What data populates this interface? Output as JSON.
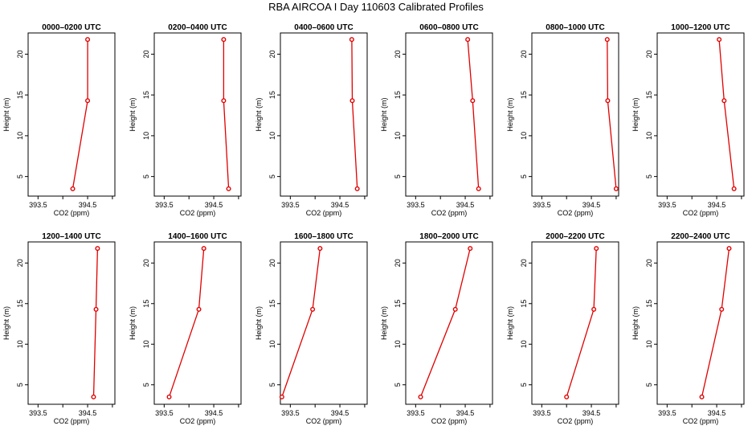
{
  "figure_title": "RBA AIRCOA I  Day 110603  Calibrated Profiles",
  "colors": {
    "series": "#e00000",
    "axis": "#000000",
    "background": "#ffffff"
  },
  "chart_data": [
    {
      "type": "line",
      "title": "0000–0200 UTC",
      "xlabel": "CO2 (ppm)",
      "ylabel": "Height (m)",
      "x": [
        394.2,
        394.5,
        394.5
      ],
      "y": [
        3.5,
        14.3,
        21.8
      ],
      "xlim": [
        393.3,
        395.05
      ],
      "ylim": [
        2.6,
        22.6
      ],
      "xticks": [
        393.5,
        394,
        394.5,
        395
      ],
      "xtick_labels": [
        "393.5",
        "",
        "394.5",
        ""
      ],
      "yticks": [
        5,
        10,
        15,
        20
      ],
      "ytick_labels": [
        "5",
        "10",
        "15",
        "20"
      ]
    },
    {
      "type": "line",
      "title": "0200–0400 UTC",
      "xlabel": "CO2 (ppm)",
      "ylabel": "Height (m)",
      "x": [
        394.8,
        394.7,
        394.7
      ],
      "y": [
        3.5,
        14.3,
        21.8
      ],
      "xlim": [
        393.3,
        395.05
      ],
      "ylim": [
        2.6,
        22.6
      ],
      "xticks": [
        393.5,
        394,
        394.5,
        395
      ],
      "xtick_labels": [
        "393.5",
        "",
        "394.5",
        ""
      ],
      "yticks": [
        5,
        10,
        15,
        20
      ],
      "ytick_labels": [
        "5",
        "10",
        "15",
        "20"
      ]
    },
    {
      "type": "line",
      "title": "0400–0600 UTC",
      "xlabel": "CO2 (ppm)",
      "ylabel": "Height (m)",
      "x": [
        394.85,
        394.75,
        394.74
      ],
      "y": [
        3.5,
        14.3,
        21.8
      ],
      "xlim": [
        393.3,
        395.05
      ],
      "ylim": [
        2.6,
        22.6
      ],
      "xticks": [
        393.5,
        394,
        394.5,
        395
      ],
      "xtick_labels": [
        "393.5",
        "",
        "394.5",
        ""
      ],
      "yticks": [
        5,
        10,
        15,
        20
      ],
      "ytick_labels": [
        "5",
        "10",
        "15",
        "20"
      ]
    },
    {
      "type": "line",
      "title": "0600–0800 UTC",
      "xlabel": "CO2 (ppm)",
      "ylabel": "Height (m)",
      "x": [
        394.77,
        394.65,
        394.55
      ],
      "y": [
        3.5,
        14.3,
        21.8
      ],
      "xlim": [
        393.3,
        395.05
      ],
      "ylim": [
        2.6,
        22.6
      ],
      "xticks": [
        393.5,
        394,
        394.5,
        395
      ],
      "xtick_labels": [
        "393.5",
        "",
        "394.5",
        ""
      ],
      "yticks": [
        5,
        10,
        15,
        20
      ],
      "ytick_labels": [
        "5",
        "10",
        "15",
        "20"
      ]
    },
    {
      "type": "line",
      "title": "0800–1000 UTC",
      "xlabel": "CO2 (ppm)",
      "ylabel": "Height (m)",
      "x": [
        395.0,
        394.83,
        394.82
      ],
      "y": [
        3.5,
        14.3,
        21.8
      ],
      "xlim": [
        393.3,
        395.05
      ],
      "ylim": [
        2.6,
        22.6
      ],
      "xticks": [
        393.5,
        394,
        394.5,
        395
      ],
      "xtick_labels": [
        "393.5",
        "",
        "394.5",
        ""
      ],
      "yticks": [
        5,
        10,
        15,
        20
      ],
      "ytick_labels": [
        "5",
        "10",
        "15",
        "20"
      ]
    },
    {
      "type": "line",
      "title": "1000–1200 UTC",
      "xlabel": "CO2 (ppm)",
      "ylabel": "Height (m)",
      "x": [
        394.85,
        394.65,
        394.55
      ],
      "y": [
        3.5,
        14.3,
        21.8
      ],
      "xlim": [
        393.3,
        395.05
      ],
      "ylim": [
        2.6,
        22.6
      ],
      "xticks": [
        393.5,
        394,
        394.5,
        395
      ],
      "xtick_labels": [
        "393.5",
        "",
        "394.5",
        ""
      ],
      "yticks": [
        5,
        10,
        15,
        20
      ],
      "ytick_labels": [
        "5",
        "10",
        "15",
        "20"
      ]
    },
    {
      "type": "line",
      "title": "1200–1400 UTC",
      "xlabel": "CO2 (ppm)",
      "ylabel": "Height (m)",
      "x": [
        394.62,
        394.67,
        394.7
      ],
      "y": [
        3.5,
        14.3,
        21.8
      ],
      "xlim": [
        393.3,
        395.05
      ],
      "ylim": [
        2.6,
        22.6
      ],
      "xticks": [
        393.5,
        394,
        394.5,
        395
      ],
      "xtick_labels": [
        "393.5",
        "",
        "394.5",
        ""
      ],
      "yticks": [
        5,
        10,
        15,
        20
      ],
      "ytick_labels": [
        "5",
        "10",
        "15",
        "20"
      ]
    },
    {
      "type": "line",
      "title": "1400–1600 UTC",
      "xlabel": "CO2 (ppm)",
      "ylabel": "Height (m)",
      "x": [
        393.6,
        394.2,
        394.3
      ],
      "y": [
        3.5,
        14.3,
        21.8
      ],
      "xlim": [
        393.3,
        395.05
      ],
      "ylim": [
        2.6,
        22.6
      ],
      "xticks": [
        393.5,
        394,
        394.5,
        395
      ],
      "xtick_labels": [
        "393.5",
        "",
        "394.5",
        ""
      ],
      "yticks": [
        5,
        10,
        15,
        20
      ],
      "ytick_labels": [
        "5",
        "10",
        "15",
        "20"
      ]
    },
    {
      "type": "line",
      "title": "1600–1800 UTC",
      "xlabel": "CO2 (ppm)",
      "ylabel": "Height (m)",
      "x": [
        393.33,
        393.95,
        394.1
      ],
      "y": [
        3.5,
        14.3,
        21.8
      ],
      "xlim": [
        393.3,
        395.05
      ],
      "ylim": [
        2.6,
        22.6
      ],
      "xticks": [
        393.5,
        394,
        394.5,
        395
      ],
      "xtick_labels": [
        "393.5",
        "",
        "394.5",
        ""
      ],
      "yticks": [
        5,
        10,
        15,
        20
      ],
      "ytick_labels": [
        "5",
        "10",
        "15",
        "20"
      ]
    },
    {
      "type": "line",
      "title": "1800–2000 UTC",
      "xlabel": "CO2 (ppm)",
      "ylabel": "Height (m)",
      "x": [
        393.6,
        394.3,
        394.6
      ],
      "y": [
        3.5,
        14.3,
        21.8
      ],
      "xlim": [
        393.3,
        395.05
      ],
      "ylim": [
        2.6,
        22.6
      ],
      "xticks": [
        393.5,
        394,
        394.5,
        395
      ],
      "xtick_labels": [
        "393.5",
        "",
        "394.5",
        ""
      ],
      "yticks": [
        5,
        10,
        15,
        20
      ],
      "ytick_labels": [
        "5",
        "10",
        "15",
        "20"
      ]
    },
    {
      "type": "line",
      "title": "2000–2200 UTC",
      "xlabel": "CO2 (ppm)",
      "ylabel": "Height (m)",
      "x": [
        394.0,
        394.55,
        394.6
      ],
      "y": [
        3.5,
        14.3,
        21.8
      ],
      "xlim": [
        393.3,
        395.05
      ],
      "ylim": [
        2.6,
        22.6
      ],
      "xticks": [
        393.5,
        394,
        394.5,
        395
      ],
      "xtick_labels": [
        "393.5",
        "",
        "394.5",
        ""
      ],
      "yticks": [
        5,
        10,
        15,
        20
      ],
      "ytick_labels": [
        "5",
        "10",
        "15",
        "20"
      ]
    },
    {
      "type": "line",
      "title": "2200–2400 UTC",
      "xlabel": "CO2 (ppm)",
      "ylabel": "Height (m)",
      "x": [
        394.2,
        394.6,
        394.75
      ],
      "y": [
        3.5,
        14.3,
        21.8
      ],
      "xlim": [
        393.3,
        395.05
      ],
      "ylim": [
        2.6,
        22.6
      ],
      "xticks": [
        393.5,
        394,
        394.5,
        395
      ],
      "xtick_labels": [
        "393.5",
        "",
        "394.5",
        ""
      ],
      "yticks": [
        5,
        10,
        15,
        20
      ],
      "ytick_labels": [
        "5",
        "10",
        "15",
        "20"
      ]
    }
  ]
}
